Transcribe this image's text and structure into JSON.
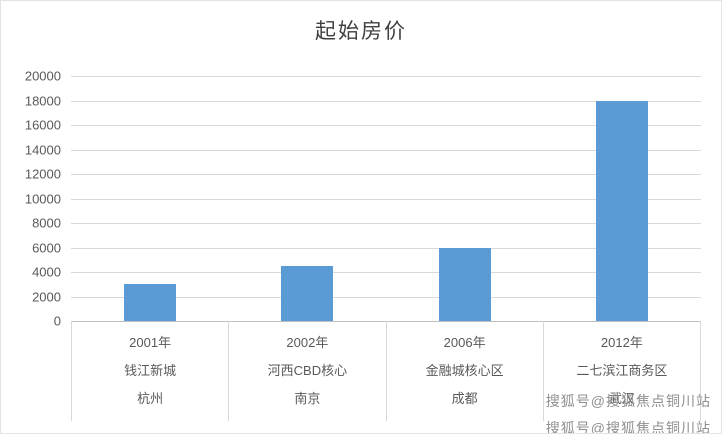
{
  "chart_data": {
    "type": "bar",
    "title": "起始房价",
    "categories": [
      {
        "year": "2001年",
        "district": "钱江新城",
        "city": "杭州"
      },
      {
        "year": "2002年",
        "district": "河西CBD核心",
        "city": "南京"
      },
      {
        "year": "2006年",
        "district": "金融城核心区",
        "city": "成都"
      },
      {
        "year": "2012年",
        "district": "二七滨江商务区",
        "city": "武汉"
      }
    ],
    "values": [
      3000,
      4500,
      6000,
      18000
    ],
    "ylim": [
      0,
      20000
    ],
    "yticks": [
      0,
      2000,
      4000,
      6000,
      8000,
      10000,
      12000,
      14000,
      16000,
      18000,
      20000
    ],
    "ylabel": "",
    "xlabel": "",
    "bar_color": "#5b9bd5",
    "grid": true,
    "legend_position": "none"
  },
  "watermark": {
    "line1": "搜狐号@搜狐焦点铜川站",
    "line2": "搜狐号@搜狐焦点铜川站"
  }
}
